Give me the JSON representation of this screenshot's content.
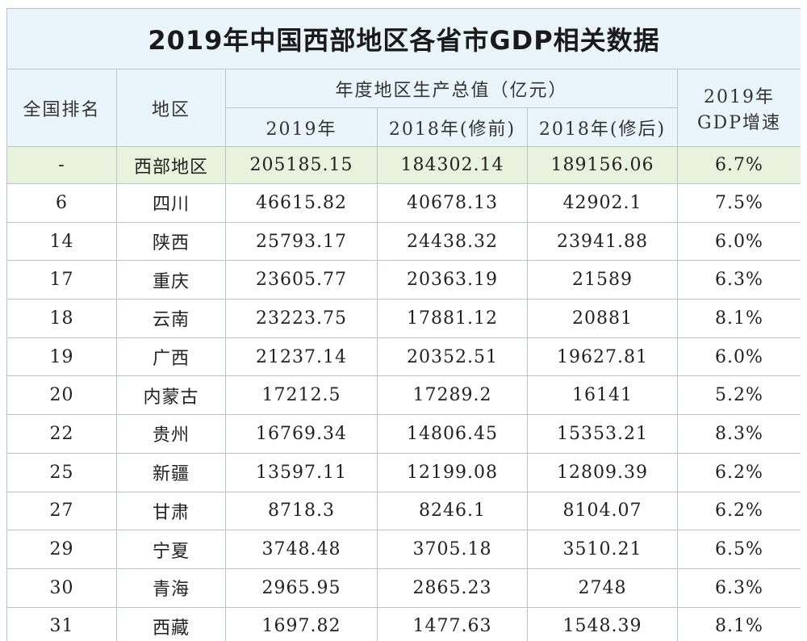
{
  "title": "2019年中国西部地区各省市GDP相关数据",
  "headers": {
    "rank": "全国排名",
    "region": "地区",
    "gdp_group": "年度地区生产总值（亿元）",
    "gdp_2019": "2019年",
    "gdp_2018_before": "2018年(修前)",
    "gdp_2018_after": "2018年(修后)",
    "growth_line1": "2019年",
    "growth_line2": "GDP增速"
  },
  "west_total": {
    "rank": "-",
    "region": "西部地区",
    "gdp_2019": "205185.15",
    "gdp_2018_before": "184302.14",
    "gdp_2018_after": "189156.06",
    "growth": "6.7%"
  },
  "rows": [
    {
      "rank": "6",
      "region": "四川",
      "gdp_2019": "46615.82",
      "gdp_2018_before": "40678.13",
      "gdp_2018_after": "42902.1",
      "growth": "7.5%"
    },
    {
      "rank": "14",
      "region": "陕西",
      "gdp_2019": "25793.17",
      "gdp_2018_before": "24438.32",
      "gdp_2018_after": "23941.88",
      "growth": "6.0%"
    },
    {
      "rank": "17",
      "region": "重庆",
      "gdp_2019": "23605.77",
      "gdp_2018_before": "20363.19",
      "gdp_2018_after": "21589",
      "growth": "6.3%"
    },
    {
      "rank": "18",
      "region": "云南",
      "gdp_2019": "23223.75",
      "gdp_2018_before": "17881.12",
      "gdp_2018_after": "20881",
      "growth": "8.1%"
    },
    {
      "rank": "19",
      "region": "广西",
      "gdp_2019": "21237.14",
      "gdp_2018_before": "20352.51",
      "gdp_2018_after": "19627.81",
      "growth": "6.0%"
    },
    {
      "rank": "20",
      "region": "内蒙古",
      "gdp_2019": "17212.5",
      "gdp_2018_before": "17289.2",
      "gdp_2018_after": "16141",
      "growth": "5.2%"
    },
    {
      "rank": "22",
      "region": "贵州",
      "gdp_2019": "16769.34",
      "gdp_2018_before": "14806.45",
      "gdp_2018_after": "15353.21",
      "growth": "8.3%"
    },
    {
      "rank": "25",
      "region": "新疆",
      "gdp_2019": "13597.11",
      "gdp_2018_before": "12199.08",
      "gdp_2018_after": "12809.39",
      "growth": "6.2%"
    },
    {
      "rank": "27",
      "region": "甘肃",
      "gdp_2019": "8718.3",
      "gdp_2018_before": "8246.1",
      "gdp_2018_after": "8104.07",
      "growth": "6.2%"
    },
    {
      "rank": "29",
      "region": "宁夏",
      "gdp_2019": "3748.48",
      "gdp_2018_before": "3705.18",
      "gdp_2018_after": "3510.21",
      "growth": "6.5%"
    },
    {
      "rank": "30",
      "region": "青海",
      "gdp_2019": "2965.95",
      "gdp_2018_before": "2865.23",
      "gdp_2018_after": "2748",
      "growth": "6.3%"
    },
    {
      "rank": "31",
      "region": "西藏",
      "gdp_2019": "1697.82",
      "gdp_2018_before": "1477.63",
      "gdp_2018_after": "1548.39",
      "growth": "8.1%"
    }
  ]
}
